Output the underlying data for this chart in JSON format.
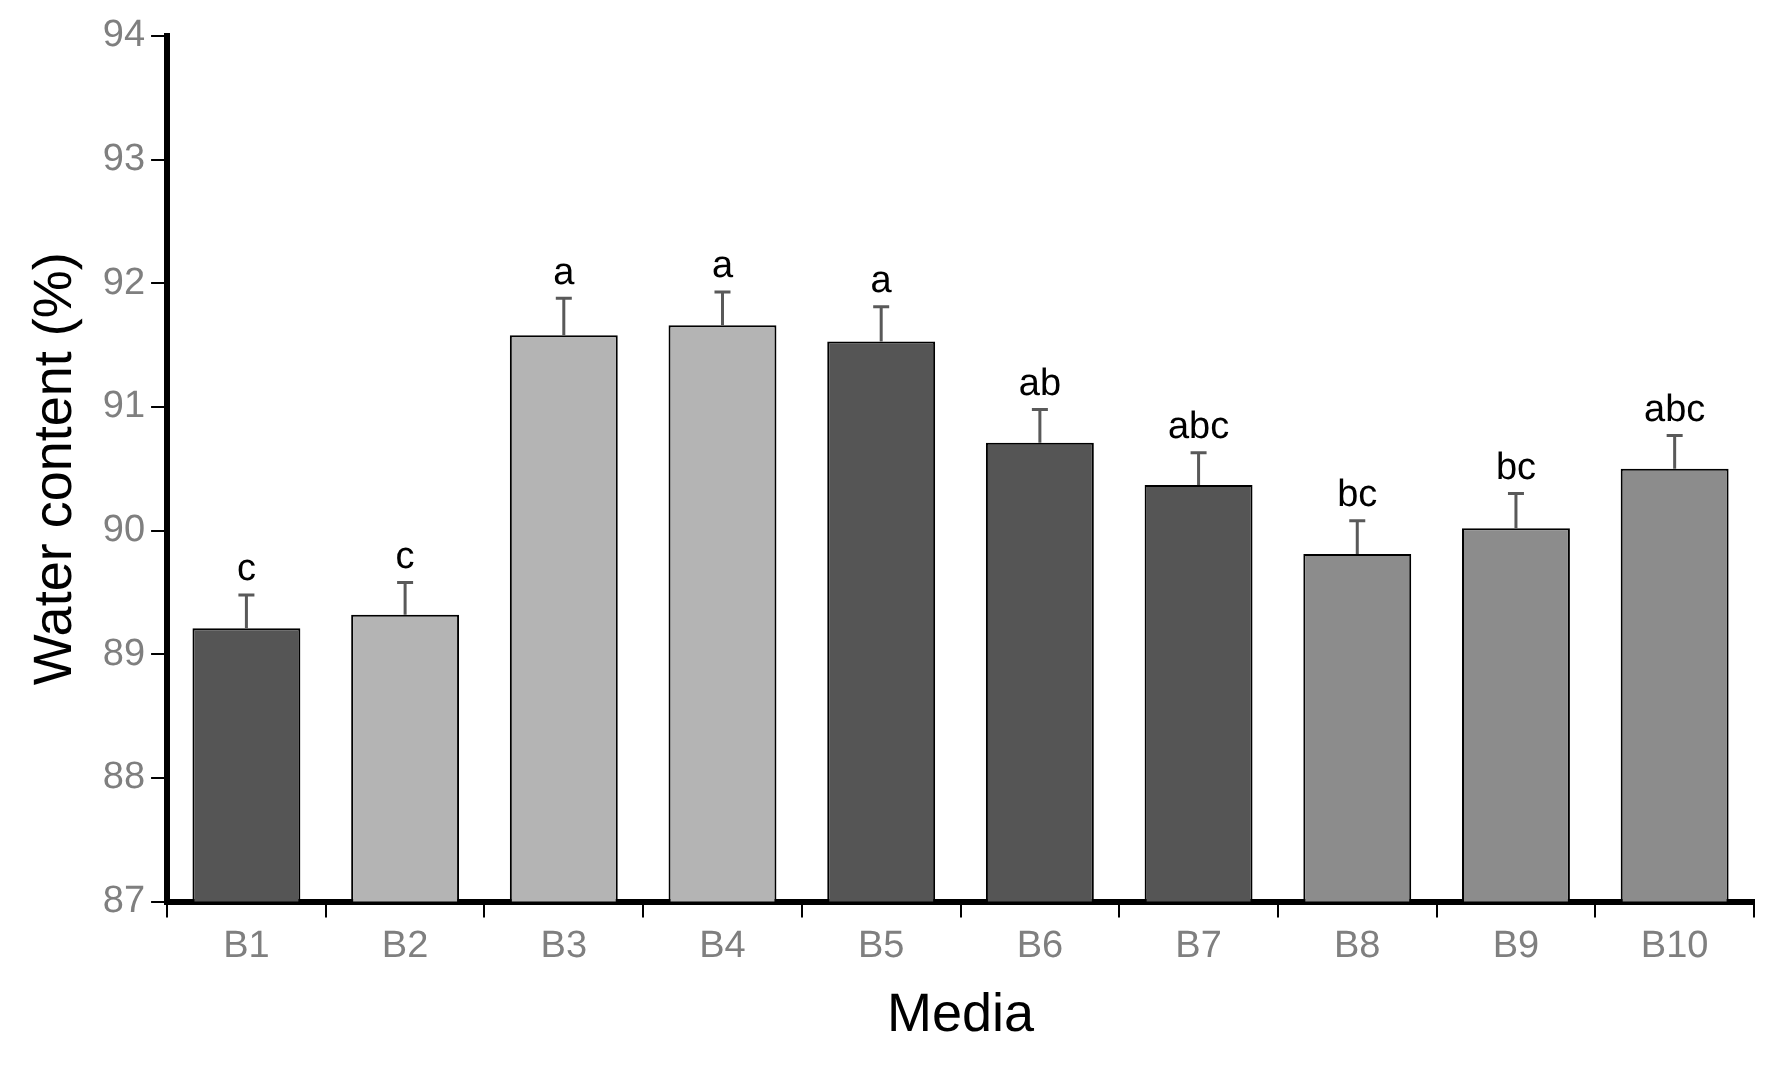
{
  "chart_data": {
    "type": "bar",
    "xlabel": "Media",
    "ylabel": "Water content (%)",
    "categories": [
      "B1",
      "B2",
      "B3",
      "B4",
      "B5",
      "B6",
      "B7",
      "B8",
      "B9",
      "B10"
    ],
    "values": [
      89.21,
      89.32,
      91.58,
      91.66,
      91.53,
      90.71,
      90.37,
      89.81,
      90.02,
      90.5
    ],
    "errors": [
      0.27,
      0.26,
      0.3,
      0.27,
      0.28,
      0.27,
      0.26,
      0.27,
      0.28,
      0.27
    ],
    "colors": [
      "#555555",
      "#b4b4b4",
      "#b4b4b4",
      "#b4b4b4",
      "#555555",
      "#555555",
      "#555555",
      "#8c8c8c",
      "#8c8c8c",
      "#8c8c8c"
    ],
    "ylim": [
      87,
      94
    ],
    "yticks": [
      87,
      88,
      89,
      90,
      91,
      92,
      93,
      94
    ],
    "grid": false,
    "legend": false,
    "annotations": [
      {
        "text": "c",
        "x": "B1",
        "y": 89.48
      },
      {
        "text": "c",
        "x": "B2",
        "y": 89.58
      },
      {
        "text": "a",
        "x": "B3",
        "y": 91.88
      },
      {
        "text": "a",
        "x": "B4",
        "y": 91.93
      },
      {
        "text": "a",
        "x": "B5",
        "y": 91.81
      },
      {
        "text": "ab",
        "x": "B6",
        "y": 90.98
      },
      {
        "text": "abc",
        "x": "B7",
        "y": 90.63
      },
      {
        "text": "bc",
        "x": "B8",
        "y": 90.08
      },
      {
        "text": "bc",
        "x": "B9",
        "y": 90.3
      },
      {
        "text": "abc",
        "x": "B10",
        "y": 90.77
      }
    ]
  }
}
